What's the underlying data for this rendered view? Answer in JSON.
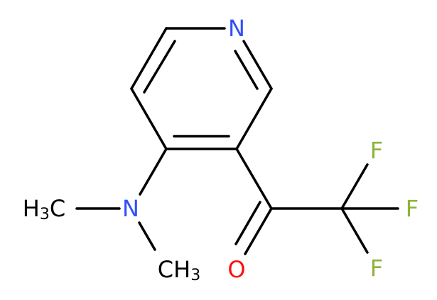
{
  "atoms": {
    "ring_n": {
      "label": "N"
    },
    "amine_n": {
      "label": "N"
    },
    "methyl_left": {
      "parts": [
        "H",
        "3",
        "C"
      ]
    },
    "methyl_right": {
      "parts": [
        "CH",
        "3"
      ]
    },
    "oxygen": {
      "label": "O"
    },
    "fluorine_top": {
      "label": "F"
    },
    "fluorine_right": {
      "label": "F"
    },
    "fluorine_bottom": {
      "label": "F"
    }
  }
}
